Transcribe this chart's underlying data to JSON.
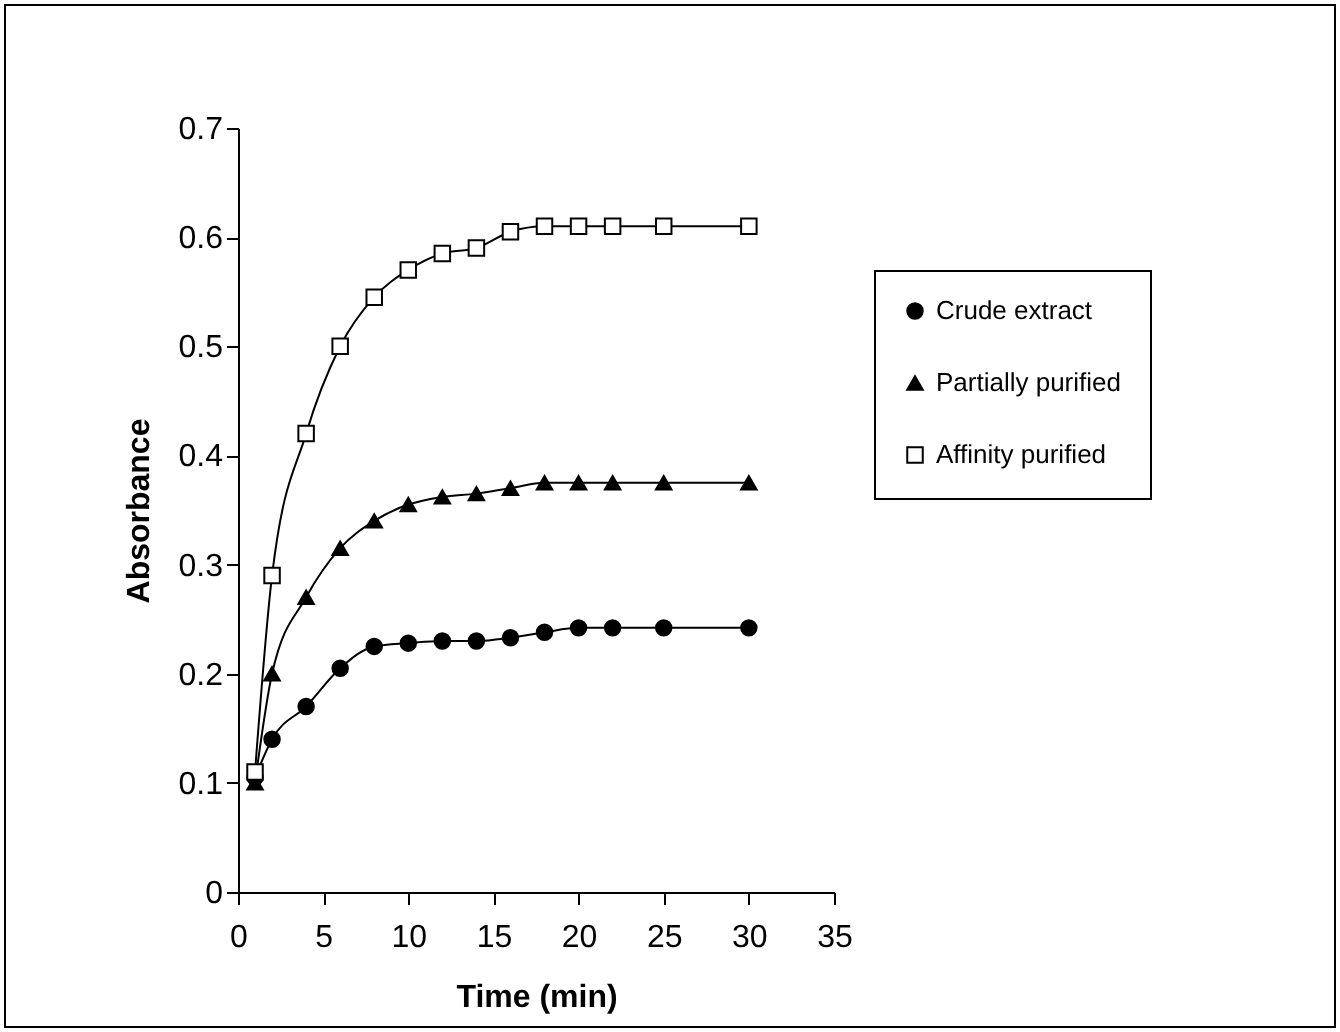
{
  "chart_data": {
    "type": "line",
    "xlabel": "Time (min)",
    "ylabel": "Absorbance",
    "x": [
      1,
      2,
      4,
      6,
      8,
      10,
      12,
      14,
      16,
      18,
      20,
      22,
      25,
      30
    ],
    "series": [
      {
        "name": "Crude extract",
        "color": "#000000",
        "marker": "circle",
        "values": [
          0.105,
          0.14,
          0.17,
          0.205,
          0.225,
          0.228,
          0.23,
          0.23,
          0.233,
          0.238,
          0.242,
          0.242,
          0.242,
          0.242
        ]
      },
      {
        "name": "Partially purified",
        "color": "#000000",
        "marker": "triangle",
        "values": [
          0.1,
          0.2,
          0.27,
          0.315,
          0.34,
          0.355,
          0.362,
          0.365,
          0.37,
          0.375,
          0.375,
          0.375,
          0.375,
          0.375
        ]
      },
      {
        "name": "Affinity purified",
        "color": "#000000",
        "marker": "square",
        "values": [
          0.11,
          0.29,
          0.42,
          0.5,
          0.545,
          0.57,
          0.585,
          0.59,
          0.605,
          0.61,
          0.61,
          0.61,
          0.61,
          0.61
        ]
      }
    ],
    "xlim": [
      0,
      35
    ],
    "xticks": [
      0,
      5,
      10,
      15,
      20,
      25,
      30,
      35
    ],
    "ylim": [
      0,
      0.7
    ],
    "yticks": [
      0,
      0.1,
      0.2,
      0.3,
      0.4,
      0.5,
      0.6,
      0.7
    ],
    "grid": false,
    "legend": "right",
    "line_style": "solid"
  }
}
